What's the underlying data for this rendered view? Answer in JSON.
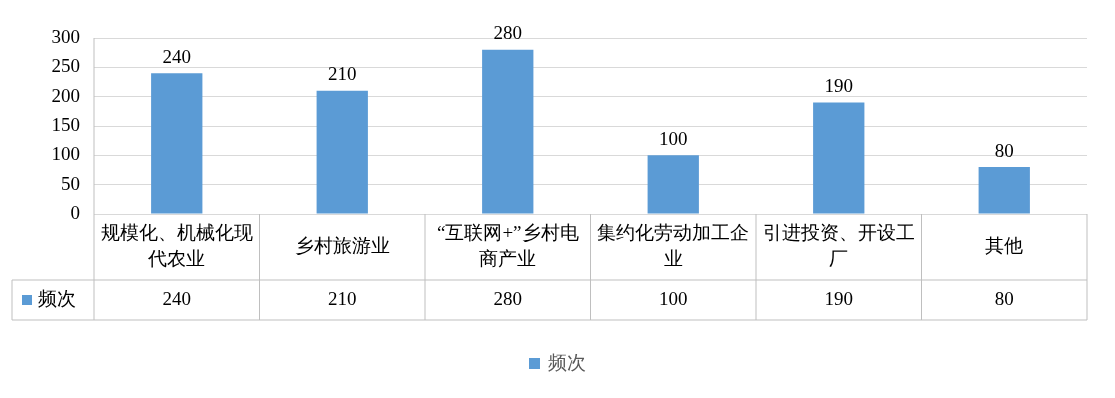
{
  "chart_data": {
    "type": "bar",
    "categories": [
      "规模化、机械化现代农业",
      "乡村旅游业",
      "“互联网+”乡村电商产业",
      "集约化劳动加工企业",
      "引进投资、开设工厂",
      "其他"
    ],
    "series": [
      {
        "name": "频次",
        "color": "#5b9bd5",
        "values": [
          240,
          210,
          280,
          100,
          190,
          80
        ],
        "value_labels": [
          "240",
          "210",
          "280",
          "100",
          "190",
          "80"
        ]
      }
    ],
    "annotations": [
      "240",
      "210",
      "280",
      "100",
      "190",
      "80"
    ],
    "ylim": [
      0,
      300
    ],
    "yticks": [
      0,
      50,
      100,
      150,
      200,
      250,
      300
    ],
    "grid": "y",
    "legend": "bottom"
  }
}
